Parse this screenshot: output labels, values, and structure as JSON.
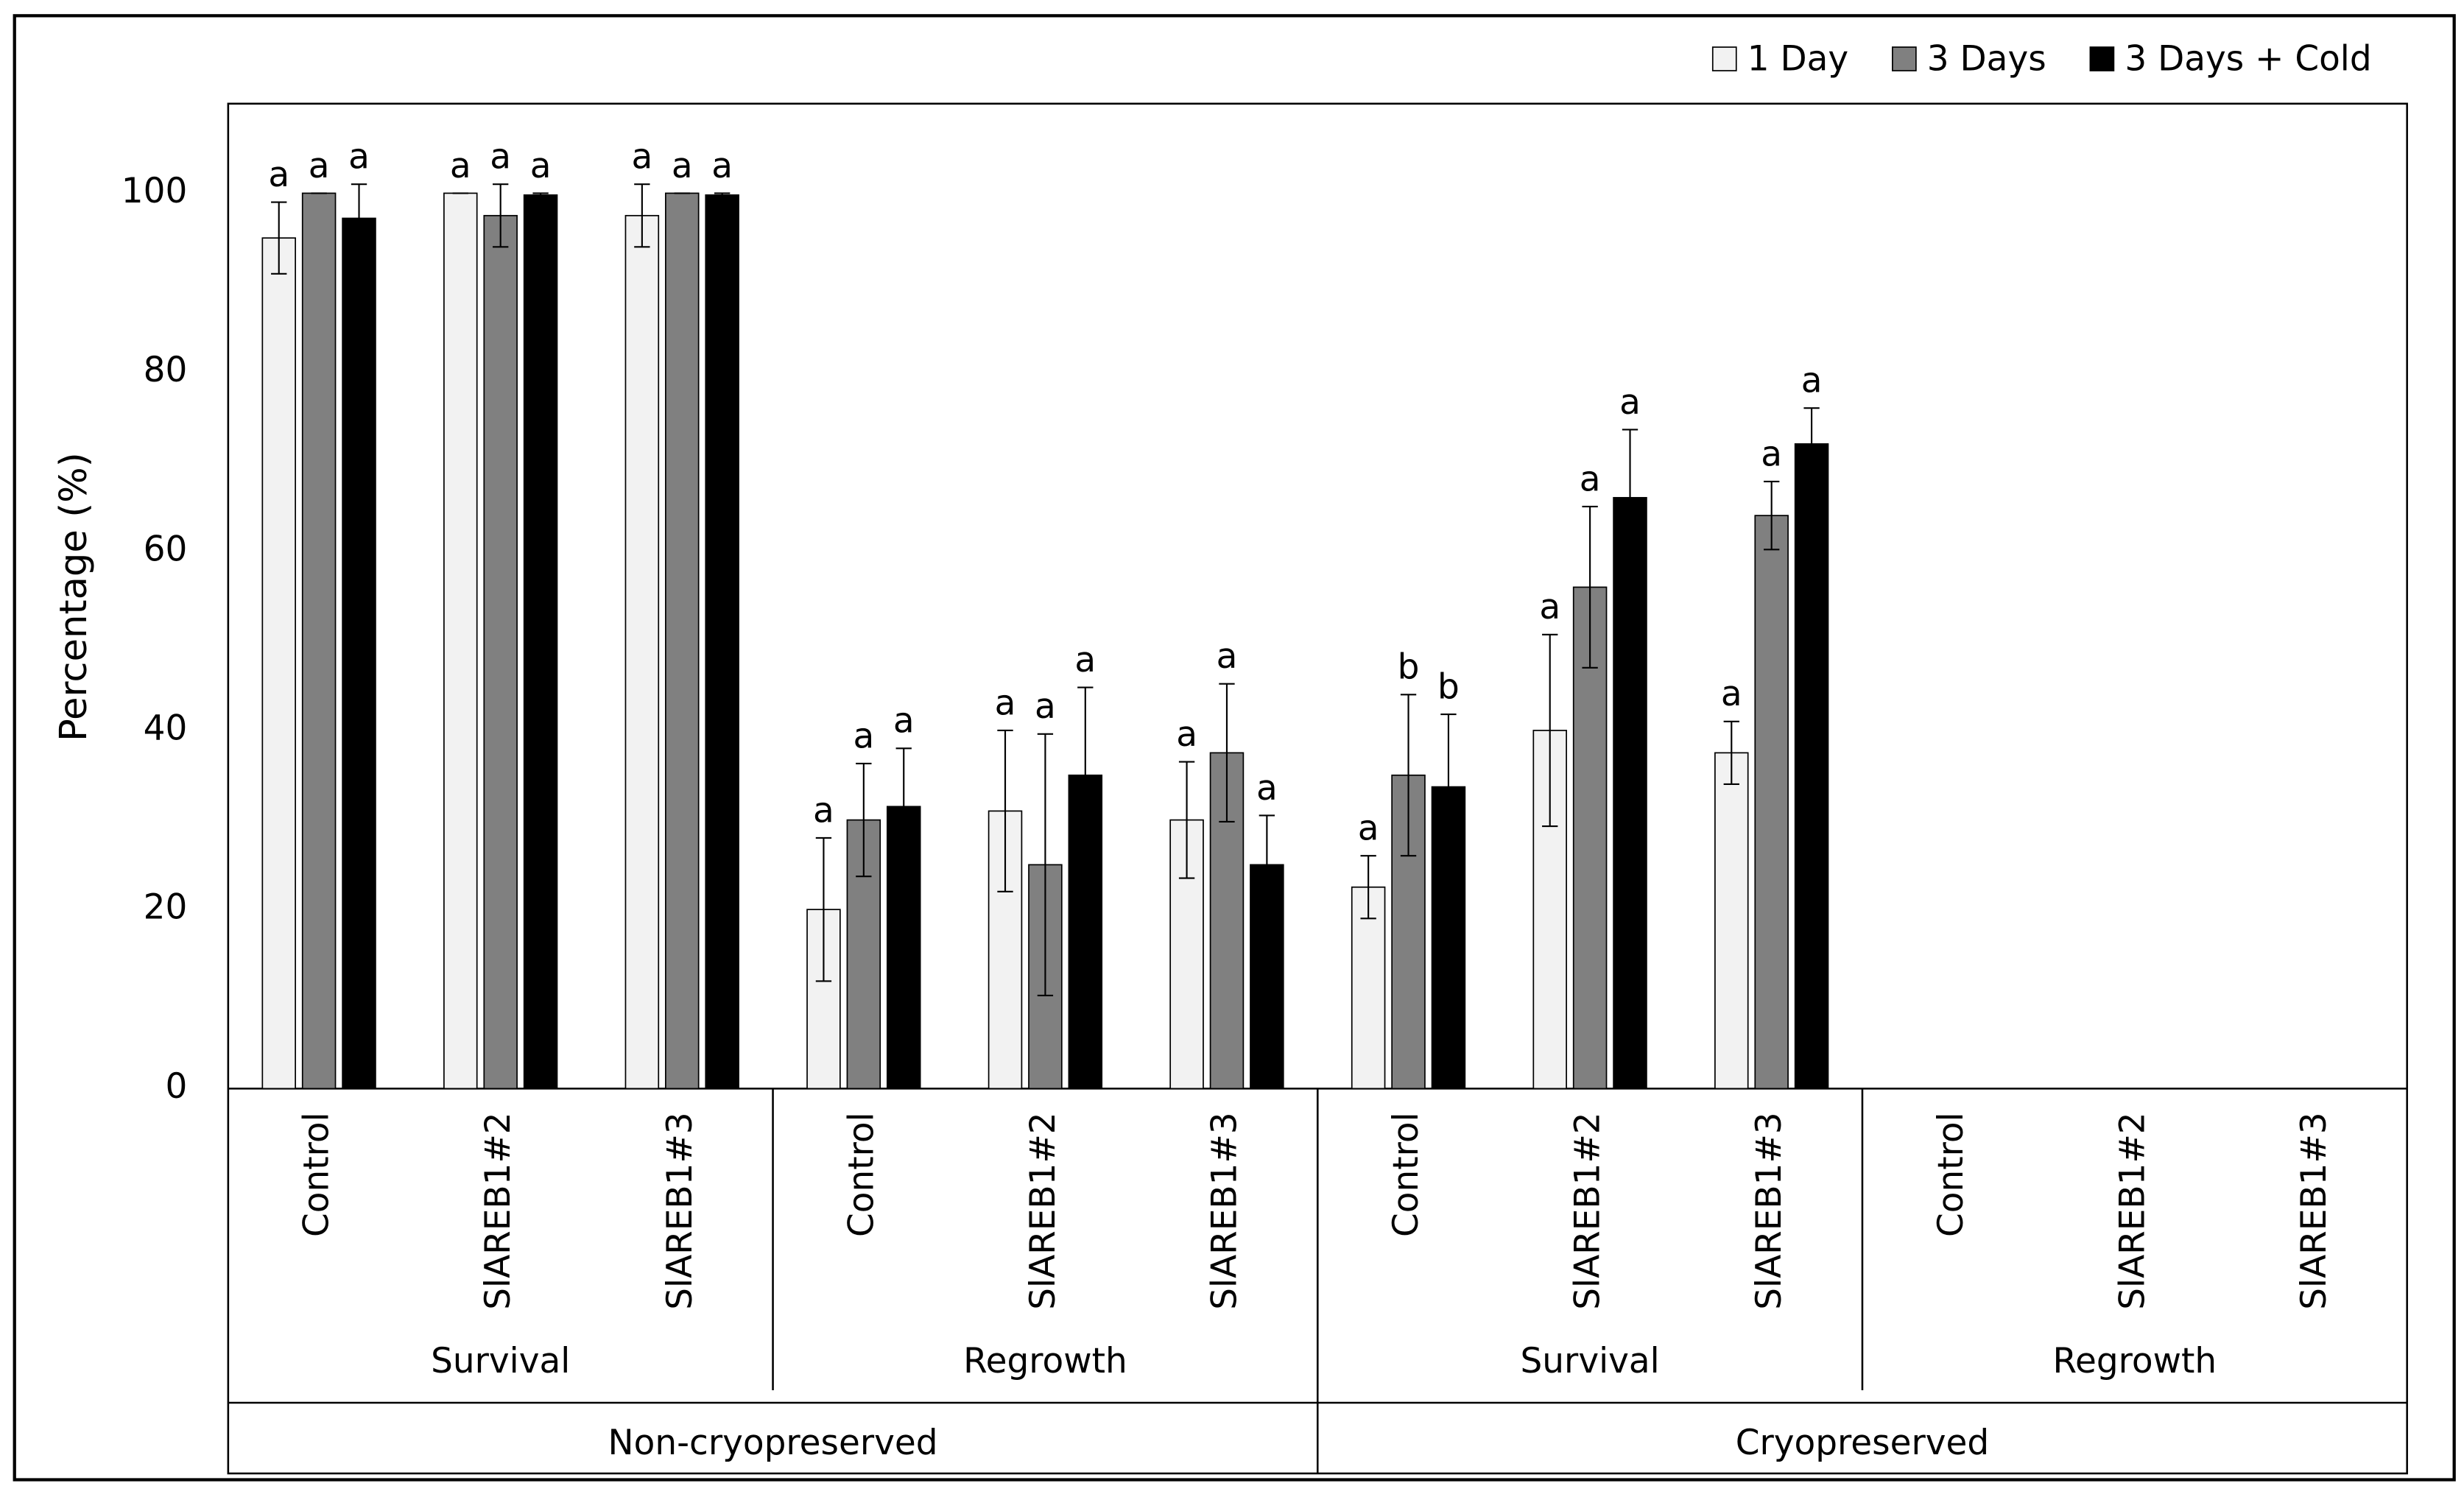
{
  "chart_data": {
    "type": "bar",
    "y_label": "Percentage (%)",
    "categories": [
      "Control",
      "SlAREB1#2",
      "SlAREB1#3",
      "Control",
      "SlAREB1#2",
      "SlAREB1#3",
      "Control",
      "SlAREB1#2",
      "SlAREB1#3",
      "Control",
      "SlAREB1#2",
      "SlAREB1#3"
    ],
    "category_groups": [
      "Survival",
      "Regrowth",
      "Survival",
      "Regrowth"
    ],
    "super_groups": [
      "Non-cryopreserved",
      "Cryopreserved"
    ],
    "series": [
      {
        "name": "1 Day",
        "color": "#f2f2f2",
        "values": [
          95,
          100,
          97.5,
          20,
          31,
          30,
          22.5,
          40,
          37.5,
          0,
          0,
          0
        ],
        "errors": [
          4,
          0,
          3.5,
          8,
          9,
          6.5,
          3.5,
          10.7,
          3.5,
          null,
          null,
          null
        ],
        "letters": [
          "a",
          "a",
          "a",
          "a",
          "a",
          "a",
          "a",
          "a",
          "a",
          null,
          null,
          null
        ]
      },
      {
        "name": "3 Days",
        "color": "#808080",
        "values": [
          100,
          97.5,
          100,
          30,
          25,
          37.5,
          35,
          56,
          64,
          0,
          0,
          0
        ],
        "errors": [
          0,
          3.5,
          0,
          6.3,
          14.6,
          7.7,
          9,
          9,
          3.8,
          null,
          null,
          null
        ],
        "letters": [
          "a",
          "a",
          "a",
          "a",
          "a",
          "a",
          "b",
          "a",
          "a",
          null,
          null,
          null
        ]
      },
      {
        "name": "3 Days + Cold",
        "color": "#000000",
        "values": [
          97.2,
          99.8,
          99.8,
          31.5,
          35,
          25,
          33.7,
          66,
          72,
          0,
          0,
          0
        ],
        "errors": [
          3.8,
          0.2,
          0.2,
          6.5,
          9.8,
          5.5,
          8.1,
          7.6,
          4,
          null,
          null,
          null
        ],
        "letters": [
          "a",
          "a",
          "a",
          "a",
          "a",
          "a",
          "b",
          "a",
          "a",
          null,
          null,
          null
        ]
      }
    ],
    "ylim": [
      0,
      110
    ],
    "yticks": [
      0,
      20,
      40,
      60,
      80,
      100
    ],
    "grid": false,
    "legend": "top-right"
  }
}
